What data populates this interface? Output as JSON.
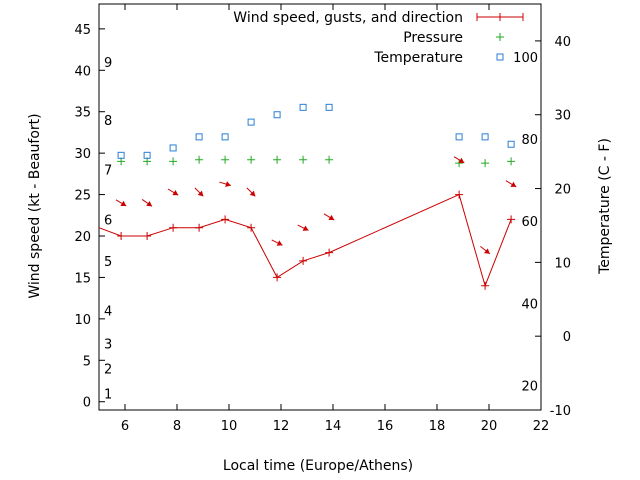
{
  "chart_data": {
    "type": "line",
    "xlabel": "Local time (Europe/Athens)",
    "ylabel": "Wind speed (kt - Beaufort)",
    "y2label": "Temperature (C - F)",
    "xlim": [
      5,
      22
    ],
    "ylim": [
      -1,
      48
    ],
    "y2lim": [
      -10,
      45
    ],
    "x_ticks": [
      6,
      8,
      10,
      12,
      14,
      16,
      18,
      20,
      22
    ],
    "y_ticks": [
      0,
      5,
      10,
      15,
      20,
      25,
      30,
      35,
      40,
      45
    ],
    "y2_ticks": [
      -10,
      0,
      10,
      20,
      30,
      40
    ],
    "beaufort_labels": [
      {
        "text": "1",
        "kt": 1
      },
      {
        "text": "2",
        "kt": 4
      },
      {
        "text": "3",
        "kt": 7
      },
      {
        "text": "4",
        "kt": 11
      },
      {
        "text": "5",
        "kt": 17
      },
      {
        "text": "6",
        "kt": 22
      },
      {
        "text": "7",
        "kt": 28
      },
      {
        "text": "8",
        "kt": 34
      },
      {
        "text": "9",
        "kt": 41
      }
    ],
    "fahrenheit_labels": [
      {
        "text": "20",
        "c": -6.7
      },
      {
        "text": "40",
        "c": 4.4
      },
      {
        "text": "60",
        "c": 15.6
      },
      {
        "text": "80",
        "c": 26.7
      },
      {
        "text": "100",
        "c": 37.8
      }
    ],
    "legend": [
      {
        "label": "Wind speed, gusts, and direction",
        "color": "#cc0000",
        "marker": "line-plus"
      },
      {
        "label": "Pressure",
        "color": "#22aa22",
        "marker": "plus"
      },
      {
        "label": "Temperature",
        "color": "#2a7fd4",
        "marker": "square"
      }
    ],
    "series": [
      {
        "name": "Wind speed, gusts, and direction",
        "color": "#cc0000",
        "axis": "y",
        "x": [
          4.8,
          5.85,
          6.85,
          7.85,
          8.85,
          9.85,
          10.85,
          11.85,
          12.85,
          13.85,
          18.85,
          19.85,
          20.85
        ],
        "y": [
          21,
          20,
          20,
          21,
          21,
          22,
          21,
          15,
          17,
          18,
          25,
          14,
          22
        ]
      },
      {
        "name": "Pressure",
        "color": "#22aa22",
        "axis": "y",
        "x": [
          5.85,
          6.85,
          7.85,
          8.85,
          9.85,
          10.85,
          11.85,
          12.85,
          13.85,
          18.85,
          19.85,
          20.85
        ],
        "y": [
          29,
          29,
          29,
          29.2,
          29.2,
          29.2,
          29.2,
          29.2,
          29.2,
          28.8,
          28.8,
          29
        ]
      },
      {
        "name": "Temperature",
        "color": "#2a7fd4",
        "axis": "y2",
        "x": [
          5.85,
          6.85,
          7.85,
          8.85,
          9.85,
          10.85,
          11.85,
          12.85,
          13.85,
          18.85,
          19.85,
          20.85
        ],
        "y": [
          24.5,
          24.5,
          25.5,
          27,
          27,
          29,
          30,
          31,
          31,
          27,
          27,
          26
        ]
      }
    ],
    "wind_arrows": [
      {
        "x": 5.85,
        "kt": 24,
        "dx": 1,
        "dy": 0.6
      },
      {
        "x": 6.85,
        "kt": 24,
        "dx": 1,
        "dy": 0.7
      },
      {
        "x": 7.85,
        "kt": 25.3,
        "dx": 1,
        "dy": 0.6
      },
      {
        "x": 8.85,
        "kt": 25.3,
        "dx": 0.8,
        "dy": 0.8
      },
      {
        "x": 9.85,
        "kt": 26.3,
        "dx": 1,
        "dy": 0.3
      },
      {
        "x": 10.85,
        "kt": 25.3,
        "dx": 0.8,
        "dy": 0.8
      },
      {
        "x": 11.85,
        "kt": 19.2,
        "dx": 1,
        "dy": 0.5
      },
      {
        "x": 12.85,
        "kt": 21,
        "dx": 1,
        "dy": 0.5
      },
      {
        "x": 13.85,
        "kt": 22.3,
        "dx": 1,
        "dy": 0.6
      },
      {
        "x": 18.85,
        "kt": 29.2,
        "dx": 1,
        "dy": 0.6
      },
      {
        "x": 19.85,
        "kt": 18.3,
        "dx": 0.9,
        "dy": 0.7
      },
      {
        "x": 20.85,
        "kt": 26.3,
        "dx": 1,
        "dy": 0.6
      }
    ]
  }
}
